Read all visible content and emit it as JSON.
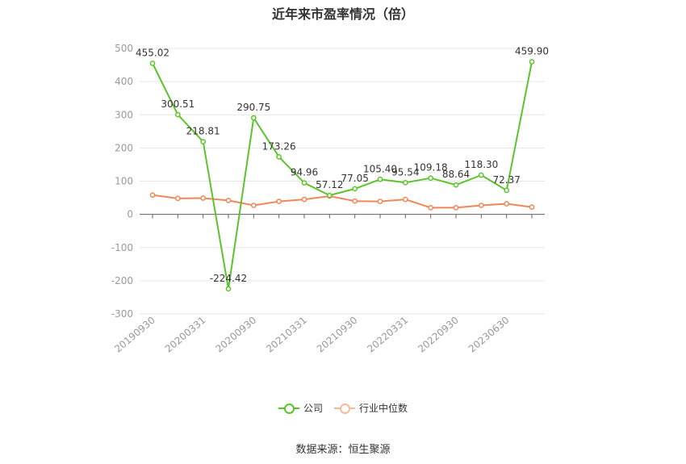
{
  "chart_data": {
    "type": "line",
    "title": "近年来市盈率情况（倍）",
    "x_ticks": [
      "20190930",
      "20200331",
      "20200930",
      "20210331",
      "20210930",
      "20220331",
      "20220930",
      "20230630"
    ],
    "ylim": [
      -300,
      500
    ],
    "y_ticks": [
      -300,
      -200,
      -100,
      0,
      100,
      200,
      300,
      400,
      500
    ],
    "grid": true,
    "legend_position": "bottom",
    "series": [
      {
        "name": "公司",
        "color": "#5cc42b",
        "values": [
          455.02,
          300.51,
          218.81,
          -224.42,
          290.75,
          173.26,
          94.96,
          57.12,
          77.05,
          105.4,
          95.54,
          109.18,
          88.64,
          118.3,
          72.37,
          459.9
        ],
        "labels": [
          "455.02",
          "300.51",
          "218.81",
          "-224.42",
          "290.75",
          "173.26",
          "94.96",
          "57.12",
          "77.05",
          "105.40",
          "95.54",
          "109.18",
          "88.64",
          "118.30",
          "72.37",
          "459.90"
        ]
      },
      {
        "name": "行业中位数",
        "color": "#f0875a",
        "values": [
          58,
          48,
          49,
          42,
          27,
          39,
          45,
          55,
          40,
          39,
          45,
          20,
          20,
          27,
          32,
          22
        ]
      }
    ]
  },
  "source": "数据来源：恒生聚源"
}
